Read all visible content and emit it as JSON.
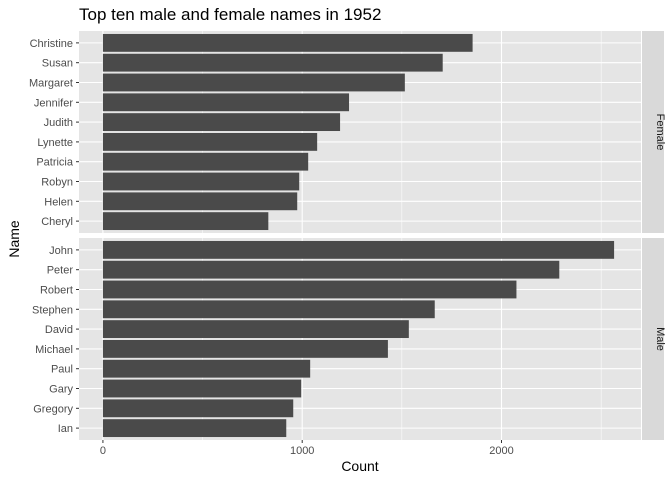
{
  "chart_data": {
    "type": "bar",
    "orientation": "horizontal",
    "title": "Top ten male and female names in 1952",
    "xlabel": "Count",
    "ylabel": "Name",
    "xlim": [
      -120,
      2700
    ],
    "xticks": [
      0,
      1000,
      2000
    ],
    "grid": true,
    "colors": {
      "panel_bg": "#e5e5e5",
      "grid": "#ffffff",
      "bar": "#4a4a4a",
      "strip_bg": "#d9d9d9"
    },
    "facets": [
      {
        "label": "Female",
        "categories": [
          "Christine",
          "Susan",
          "Margaret",
          "Jennifer",
          "Judith",
          "Lynette",
          "Patricia",
          "Robyn",
          "Helen",
          "Cheryl"
        ],
        "values": [
          1855,
          1705,
          1515,
          1235,
          1190,
          1075,
          1030,
          985,
          975,
          830
        ]
      },
      {
        "label": "Male",
        "categories": [
          "John",
          "Peter",
          "Robert",
          "Stephen",
          "David",
          "Michael",
          "Paul",
          "Gary",
          "Gregory",
          "Ian"
        ],
        "values": [
          2565,
          2290,
          2075,
          1665,
          1535,
          1430,
          1040,
          995,
          955,
          920
        ]
      }
    ]
  }
}
